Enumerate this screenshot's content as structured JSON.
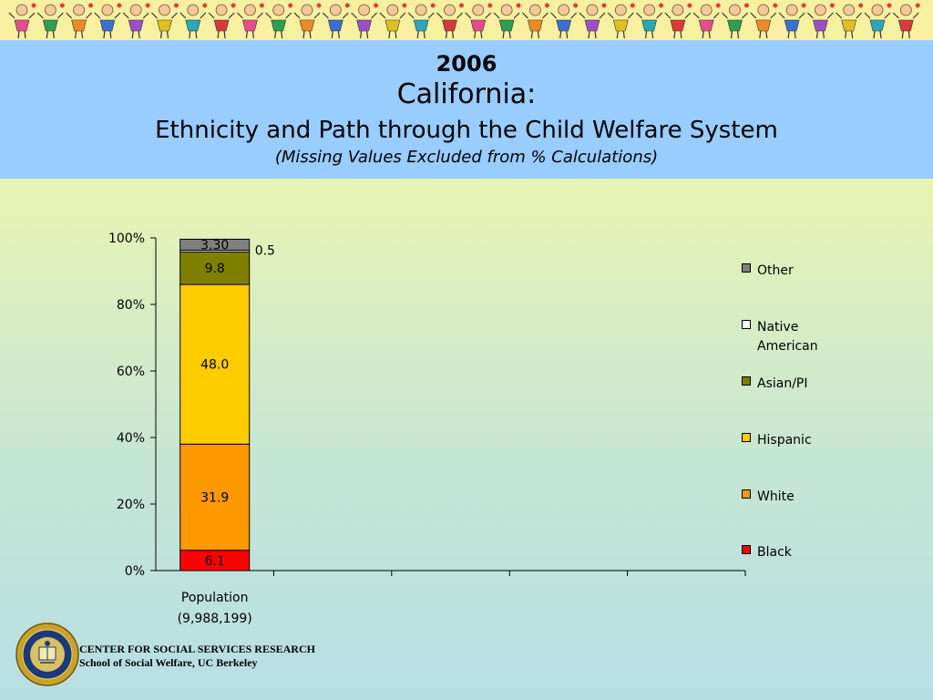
{
  "header": {
    "year": "2006",
    "state": "California:",
    "title": "Ethnicity and Path through the Child Welfare System",
    "subtitle": "(Missing Values Excluded from % Calculations)"
  },
  "chart_data": {
    "type": "bar",
    "stacked": true,
    "categories": [
      "Population\n(9,988,199)"
    ],
    "category_lines": [
      "Population",
      "(9,988,199)"
    ],
    "series": [
      {
        "name": "Black",
        "values": [
          6.1
        ],
        "label": "6.1",
        "color": "#ff0000"
      },
      {
        "name": "White",
        "values": [
          31.9
        ],
        "label": "31.9",
        "color": "#ff9900"
      },
      {
        "name": "Hispanic",
        "values": [
          48.0
        ],
        "label": "48.0",
        "color": "#ffcc00"
      },
      {
        "name": "Asian/PI",
        "values": [
          9.8
        ],
        "label": "9.8",
        "color": "#808000"
      },
      {
        "name": "Native American",
        "values": [
          0.5
        ],
        "label": "0.5",
        "color": "#ffffff"
      },
      {
        "name": "Other",
        "values": [
          3.3
        ],
        "label": "3.30",
        "color": "#808080"
      }
    ],
    "y_ticks": [
      "0%",
      "20%",
      "40%",
      "60%",
      "80%",
      "100%"
    ],
    "ylim": [
      0,
      100
    ],
    "x_slots": 5,
    "legend_placement": "right",
    "legend_order": [
      "Other",
      "Native American",
      "Asian/PI",
      "Hispanic",
      "White",
      "Black"
    ],
    "legend_lines": {
      "Other": [
        "Other"
      ],
      "Native American": [
        "Native",
        "American"
      ],
      "Asian/PI": [
        "Asian/PI"
      ],
      "Hispanic": [
        "Hispanic"
      ],
      "White": [
        "White"
      ],
      "Black": [
        "Black"
      ]
    },
    "grid": false
  },
  "footer": {
    "line1": "CENTER FOR SOCIAL SERVICES RESEARCH",
    "line2": "School of Social Welfare, UC Berkeley",
    "seal_text": "THE UNIVERSITY OF CALIFORNIA 1868"
  }
}
